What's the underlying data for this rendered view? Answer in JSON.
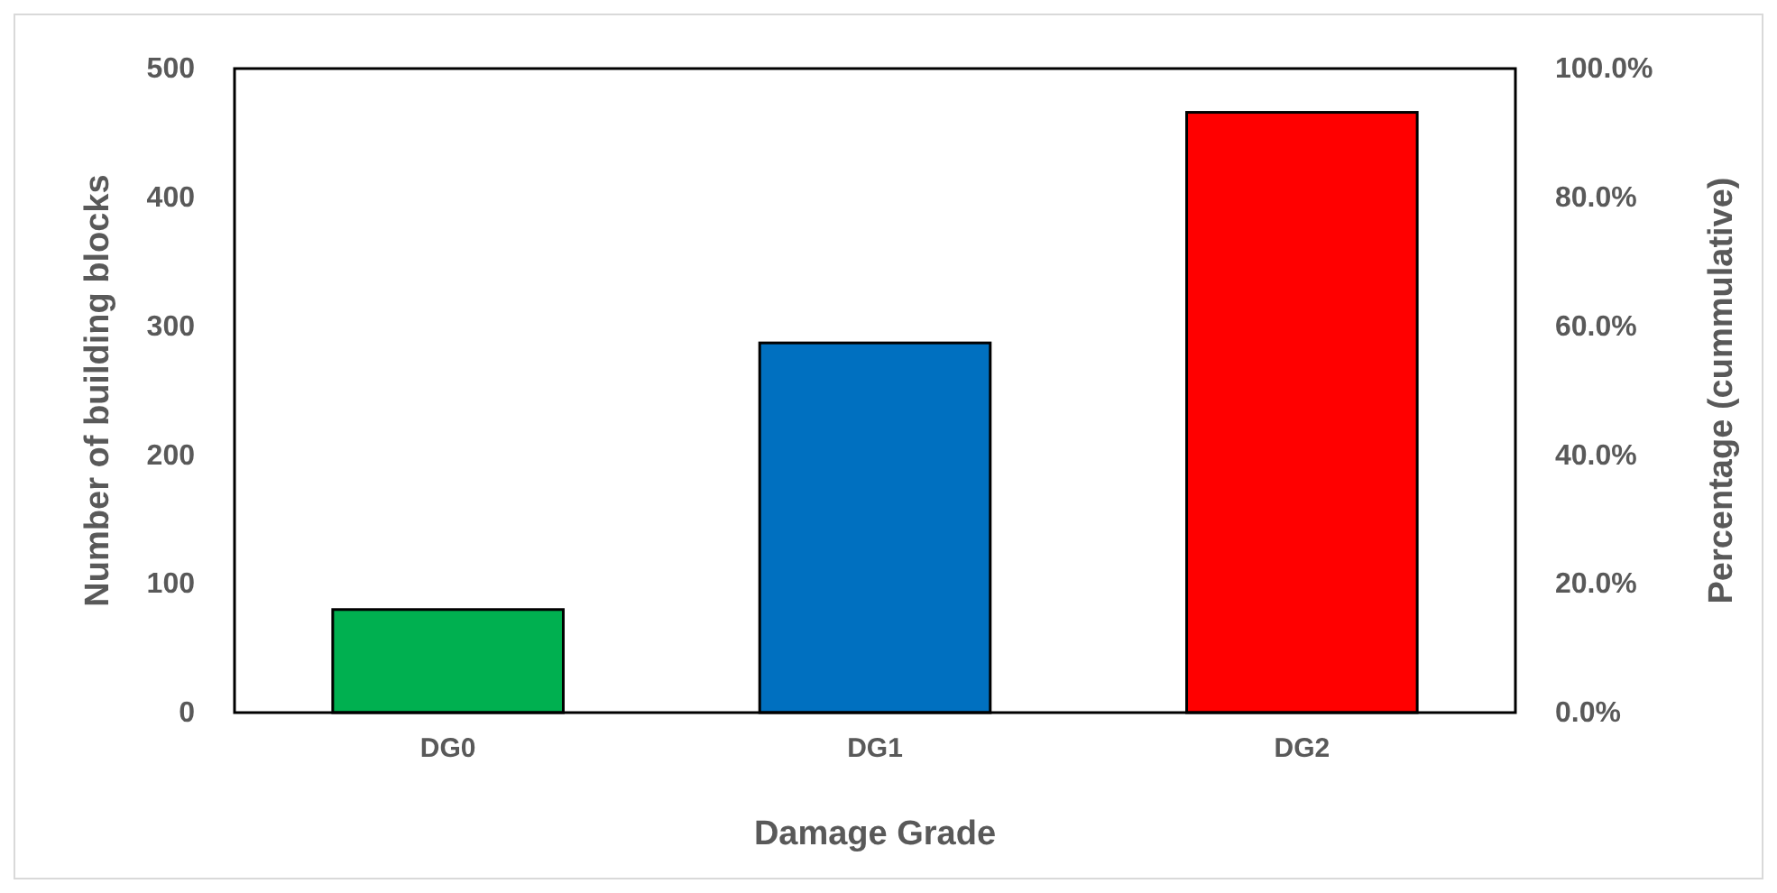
{
  "chart_data": {
    "type": "bar",
    "xlabel": "Damage Grade",
    "ylabel": "Number of building blocks",
    "y2label": "Percentage (cummulative)",
    "categories": [
      "DG0",
      "DG1",
      "DG2"
    ],
    "values": [
      80,
      287,
      466
    ],
    "colors": [
      "#00b050",
      "#0070c0",
      "#ff0000"
    ],
    "ylim": [
      0,
      500
    ],
    "yticks": [
      0,
      100,
      200,
      300,
      400,
      500
    ],
    "y2lim": [
      0,
      100
    ],
    "y2ticks": [
      {
        "value": 0,
        "label": "0.0%"
      },
      {
        "value": 20,
        "label": "20.0%"
      },
      {
        "value": 40,
        "label": "40.0%"
      },
      {
        "value": 60,
        "label": "60.0%"
      },
      {
        "value": 80,
        "label": "80.0%"
      },
      {
        "value": 100,
        "label": "100.0%"
      }
    ],
    "grid": false
  }
}
